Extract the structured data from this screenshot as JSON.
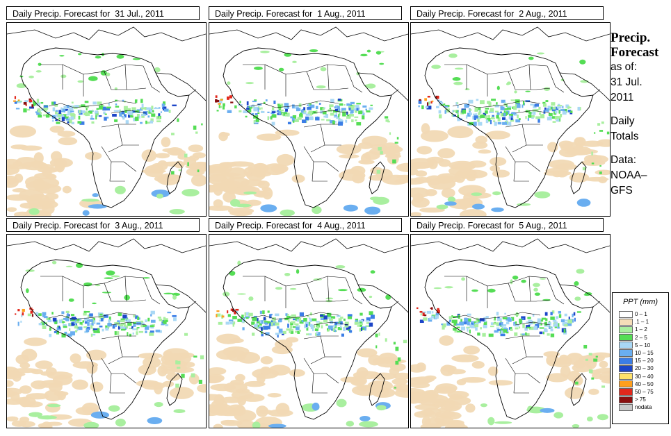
{
  "panels": [
    {
      "title": "Daily Precip. Forecast for  31 Jul., 2011"
    },
    {
      "title": "Daily Precip. Forecast for  1 Aug., 2011"
    },
    {
      "title": "Daily Precip. Forecast for  2 Aug., 2011"
    },
    {
      "title": "Daily Precip. Forecast for  3 Aug., 2011"
    },
    {
      "title": "Daily Precip. Forecast for  4 Aug., 2011"
    },
    {
      "title": "Daily Precip. Forecast for  5 Aug., 2011"
    }
  ],
  "side": {
    "title1": "Precip.",
    "title2": "Forecast",
    "asof": "as of:",
    "date1": "31 Jul.",
    "date2": "2011",
    "daily": "Daily",
    "totals": "Totals",
    "data_label": "Data:",
    "source1": "NOAA–",
    "source2": "GFS"
  },
  "legend": {
    "title": "PPT (mm)",
    "items": [
      {
        "label": "0 – 1",
        "color": "#ffffff"
      },
      {
        "label": ".1 – 1",
        "color": "#f5ddb8"
      },
      {
        "label": "1 – 2",
        "color": "#a9ef9f"
      },
      {
        "label": "2 – 5",
        "color": "#55dd55"
      },
      {
        "label": "5 – 10",
        "color": "#a9d8f5"
      },
      {
        "label": "10 – 15",
        "color": "#6aaef0"
      },
      {
        "label": "15 – 20",
        "color": "#3b7de6"
      },
      {
        "label": "20 – 30",
        "color": "#1c45c8"
      },
      {
        "label": "30 – 40",
        "color": "#ffe26a"
      },
      {
        "label": "40 – 50",
        "color": "#ff9f1c"
      },
      {
        "label": "50 – 75",
        "color": "#e2281c"
      },
      {
        "label": "> 75",
        "color": "#8a0f0f"
      },
      {
        "label": "nodata",
        "color": "#c8c8c8"
      }
    ]
  }
}
